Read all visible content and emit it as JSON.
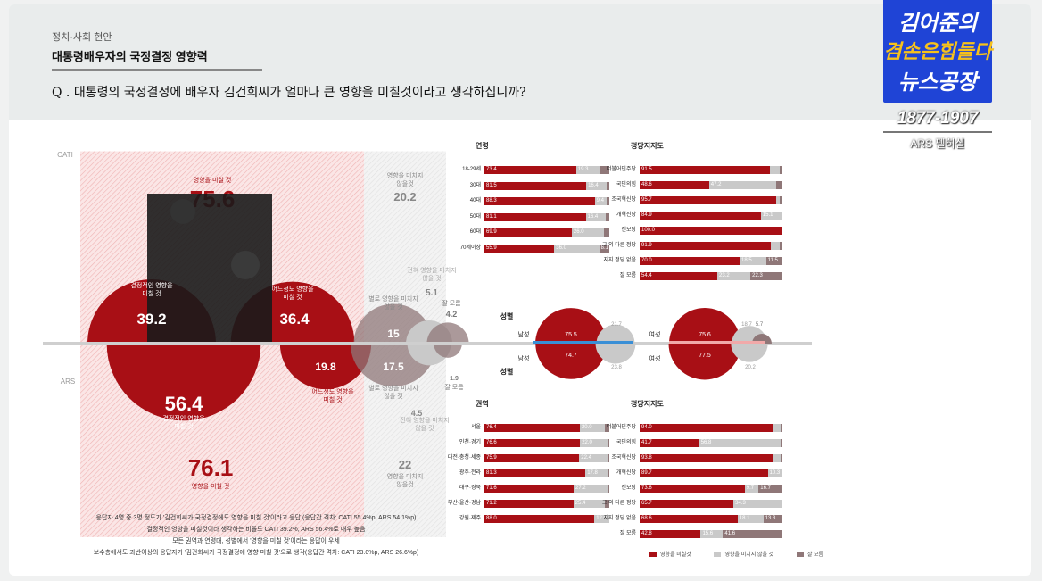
{
  "header": {
    "section": "정치·사회 현안",
    "title": "대통령배우자의 국정결정 영향력",
    "question": "Q . 대통령의 국정결정에 배우자 김건희씨가 얼마나 큰 영향을 미칠것이라고 생각하십니까?"
  },
  "logo": {
    "line1": "김어준의",
    "line2": "겸손은힘들다",
    "line3": "뉴스공장",
    "time": "1877-1907",
    "ars": "ARS 펠히실"
  },
  "colors": {
    "accent": "#a80f15",
    "gray": "#c9c9c9",
    "mauve": "#8f7778",
    "pink_hatch": "#f5d7d7",
    "blue": "#3a8fd6"
  },
  "footnotes": [
    "응답자 4명 중 3명 정도가 '김건희씨가 국정결정에도 영향을 미칠 것'이라고 응답 (응답간 격차: CATI 55.4%p, ARS 54.1%p)",
    "결정적인 영향을 미칠것이라 생각하는 비율도 CATI 39.2%, ARS 56.4%로 매우 높음",
    "모든 권역과 연령대, 성별에서 '영향을 미칠 것'이라는 응답이 우세",
    "보수층에서도 과반이상의 응답자가 '김건희씨가 국정결정에 영향 미칠 것'으로 생각(응답간 격차: CATI 23.0%p, ARS 26.6%p)"
  ],
  "chart_data": [
    {
      "type": "bubble",
      "panel": "main",
      "labels": {
        "cati": "CATI",
        "ars": "ARS",
        "effect": "영향을 미칠 것",
        "no_effect": "영향을 미치지 않을것",
        "no_effect2": "영향을 미치지 않을것",
        "decisive": "결정적인 영향을 미칠 것",
        "some": "어느정도 영향을 미칠 것",
        "little": "별로 영향을 미치지 않을 것",
        "none": "전혀 영향을 미치지 않을 것",
        "dk": "잘 모름"
      },
      "cati": {
        "effect": 75.6,
        "no_effect": 20.2,
        "decisive": 39.2,
        "some": 36.4,
        "little": 15.0,
        "none": 5.1,
        "dk": 4.2
      },
      "ars": {
        "effect": 76.1,
        "no_effect": 22.0,
        "decisive": 56.4,
        "some": 19.8,
        "little": 17.5,
        "none": 4.5,
        "dk": 1.9
      }
    },
    {
      "type": "bar",
      "panel": "age",
      "title": "연령",
      "categories": [
        "18-29세",
        "30대",
        "40대",
        "50대",
        "60대",
        "70세이상"
      ],
      "series": [
        {
          "values": [
            73.4,
            81.5,
            88.3,
            81.1,
            69.9,
            55.9
          ]
        },
        {
          "values": [
            19.3,
            16.4,
            9.4,
            16.4,
            26.0,
            36.0
          ]
        },
        {
          "values": [
            7.3,
            2.1,
            2.3,
            2.5,
            4.1,
            8.1
          ]
        }
      ]
    },
    {
      "type": "bar",
      "panel": "party_cati",
      "title": "정당지지도",
      "categories": [
        "더불어민주당",
        "국민의힘",
        "조국혁신당",
        "개혁신당",
        "진보당",
        "그 외 다른 정당",
        "지지 정당 없음",
        "잘 모름"
      ],
      "series": [
        {
          "values": [
            91.5,
            48.6,
            95.7,
            84.9,
            100.0,
            91.9,
            70.0,
            54.4
          ]
        },
        {
          "values": [
            6.6,
            47.2,
            2.3,
            15.1,
            0,
            6.1,
            18.5,
            23.2
          ]
        },
        {
          "values": [
            1.9,
            4.2,
            2.0,
            0,
            0,
            2.0,
            11.5,
            22.3
          ]
        }
      ]
    },
    {
      "type": "bubble",
      "panel": "gender",
      "title": "성별",
      "row_labels": {
        "top": "성별",
        "bottom": "성별"
      },
      "male_label": "남성",
      "female_label": "여성",
      "male": {
        "cati_effect": 75.5,
        "ars_effect": 74.7,
        "cati_no": 21.7,
        "ars_no": 23.8
      },
      "female": {
        "cati_effect": 75.6,
        "ars_effect": 77.5,
        "cati_no": 18.7,
        "cati_dk": 5.7,
        "ars_no": 20.2
      }
    },
    {
      "type": "bar",
      "panel": "region",
      "title": "권역",
      "categories": [
        "서울",
        "인천·경기",
        "대전·충청·세종",
        "광주·전라",
        "대구·경북",
        "부산·울산·경남",
        "강원·제주"
      ],
      "series": [
        {
          "values": [
            76.4,
            76.6,
            75.9,
            81.3,
            71.6,
            71.2,
            88.0
          ]
        },
        {
          "values": [
            20.0,
            22.0,
            22.4,
            17.8,
            27.2,
            25.4,
            12.0
          ]
        },
        {
          "values": [
            3.6,
            1.4,
            1.7,
            0.9,
            1.2,
            3.4,
            0
          ]
        }
      ]
    },
    {
      "type": "bar",
      "panel": "party_ars",
      "title": "정당지지도",
      "categories": [
        "더불어민주당",
        "국민의힘",
        "조국혁신당",
        "개혁신당",
        "진보당",
        "그 외 다른 정당",
        "지지 정당 없음",
        "잘 모름"
      ],
      "series": [
        {
          "values": [
            94.0,
            41.7,
            93.8,
            89.7,
            73.6,
            65.7,
            68.6,
            42.8
          ]
        },
        {
          "values": [
            4.6,
            56.8,
            5.3,
            10.3,
            9.7,
            34.3,
            18.1,
            15.6
          ]
        },
        {
          "values": [
            1.4,
            1.5,
            0.9,
            0,
            16.7,
            0,
            13.3,
            41.6
          ]
        }
      ]
    }
  ],
  "legend": [
    "영향을 미칠것",
    "영향을 미치지 않을 것",
    "잘 모름"
  ]
}
